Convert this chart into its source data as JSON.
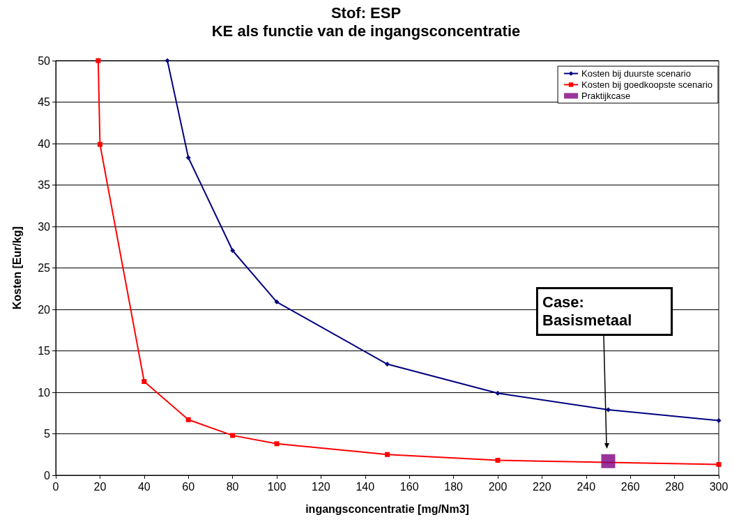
{
  "chart_data": {
    "type": "line",
    "title": "Stof: ESP",
    "subtitle": "KE als functie van de ingangsconcentratie",
    "xlabel": "ingangsconcentratie [mg/Nm3]",
    "ylabel": "Kosten [Eur/kg]",
    "series": [
      {
        "name": "Kosten bij duurste scenario",
        "color": "#000080",
        "marker": "diamond",
        "x": [
          50.5,
          60,
          80,
          100,
          150,
          200,
          250,
          300
        ],
        "values": [
          50,
          38.3,
          27.1,
          20.9,
          13.4,
          9.9,
          7.9,
          6.6
        ]
      },
      {
        "name": "Kosten bij goedkoopste scenario",
        "color": "#ff0000",
        "marker": "square",
        "x": [
          19.2,
          20,
          40,
          60,
          80,
          100,
          150,
          200,
          250,
          300
        ],
        "values": [
          50,
          39.9,
          11.3,
          6.7,
          4.8,
          3.8,
          2.5,
          1.8,
          null,
          1.3
        ]
      },
      {
        "name": "Praktijkcase",
        "type": "scatter",
        "color": "#800080",
        "marker": "square",
        "x": [
          250
        ],
        "values": [
          1.7
        ]
      }
    ],
    "xlim": [
      0,
      300
    ],
    "xticks": [
      0,
      20,
      40,
      60,
      80,
      100,
      120,
      140,
      160,
      180,
      200,
      220,
      240,
      260,
      280,
      300
    ],
    "ylim": [
      0,
      50
    ],
    "yticks": [
      0,
      5,
      10,
      15,
      20,
      25,
      30,
      35,
      40,
      45,
      50
    ],
    "grid": "y",
    "legend": "top right",
    "annotations": [
      "Case: Basismetaal"
    ]
  }
}
